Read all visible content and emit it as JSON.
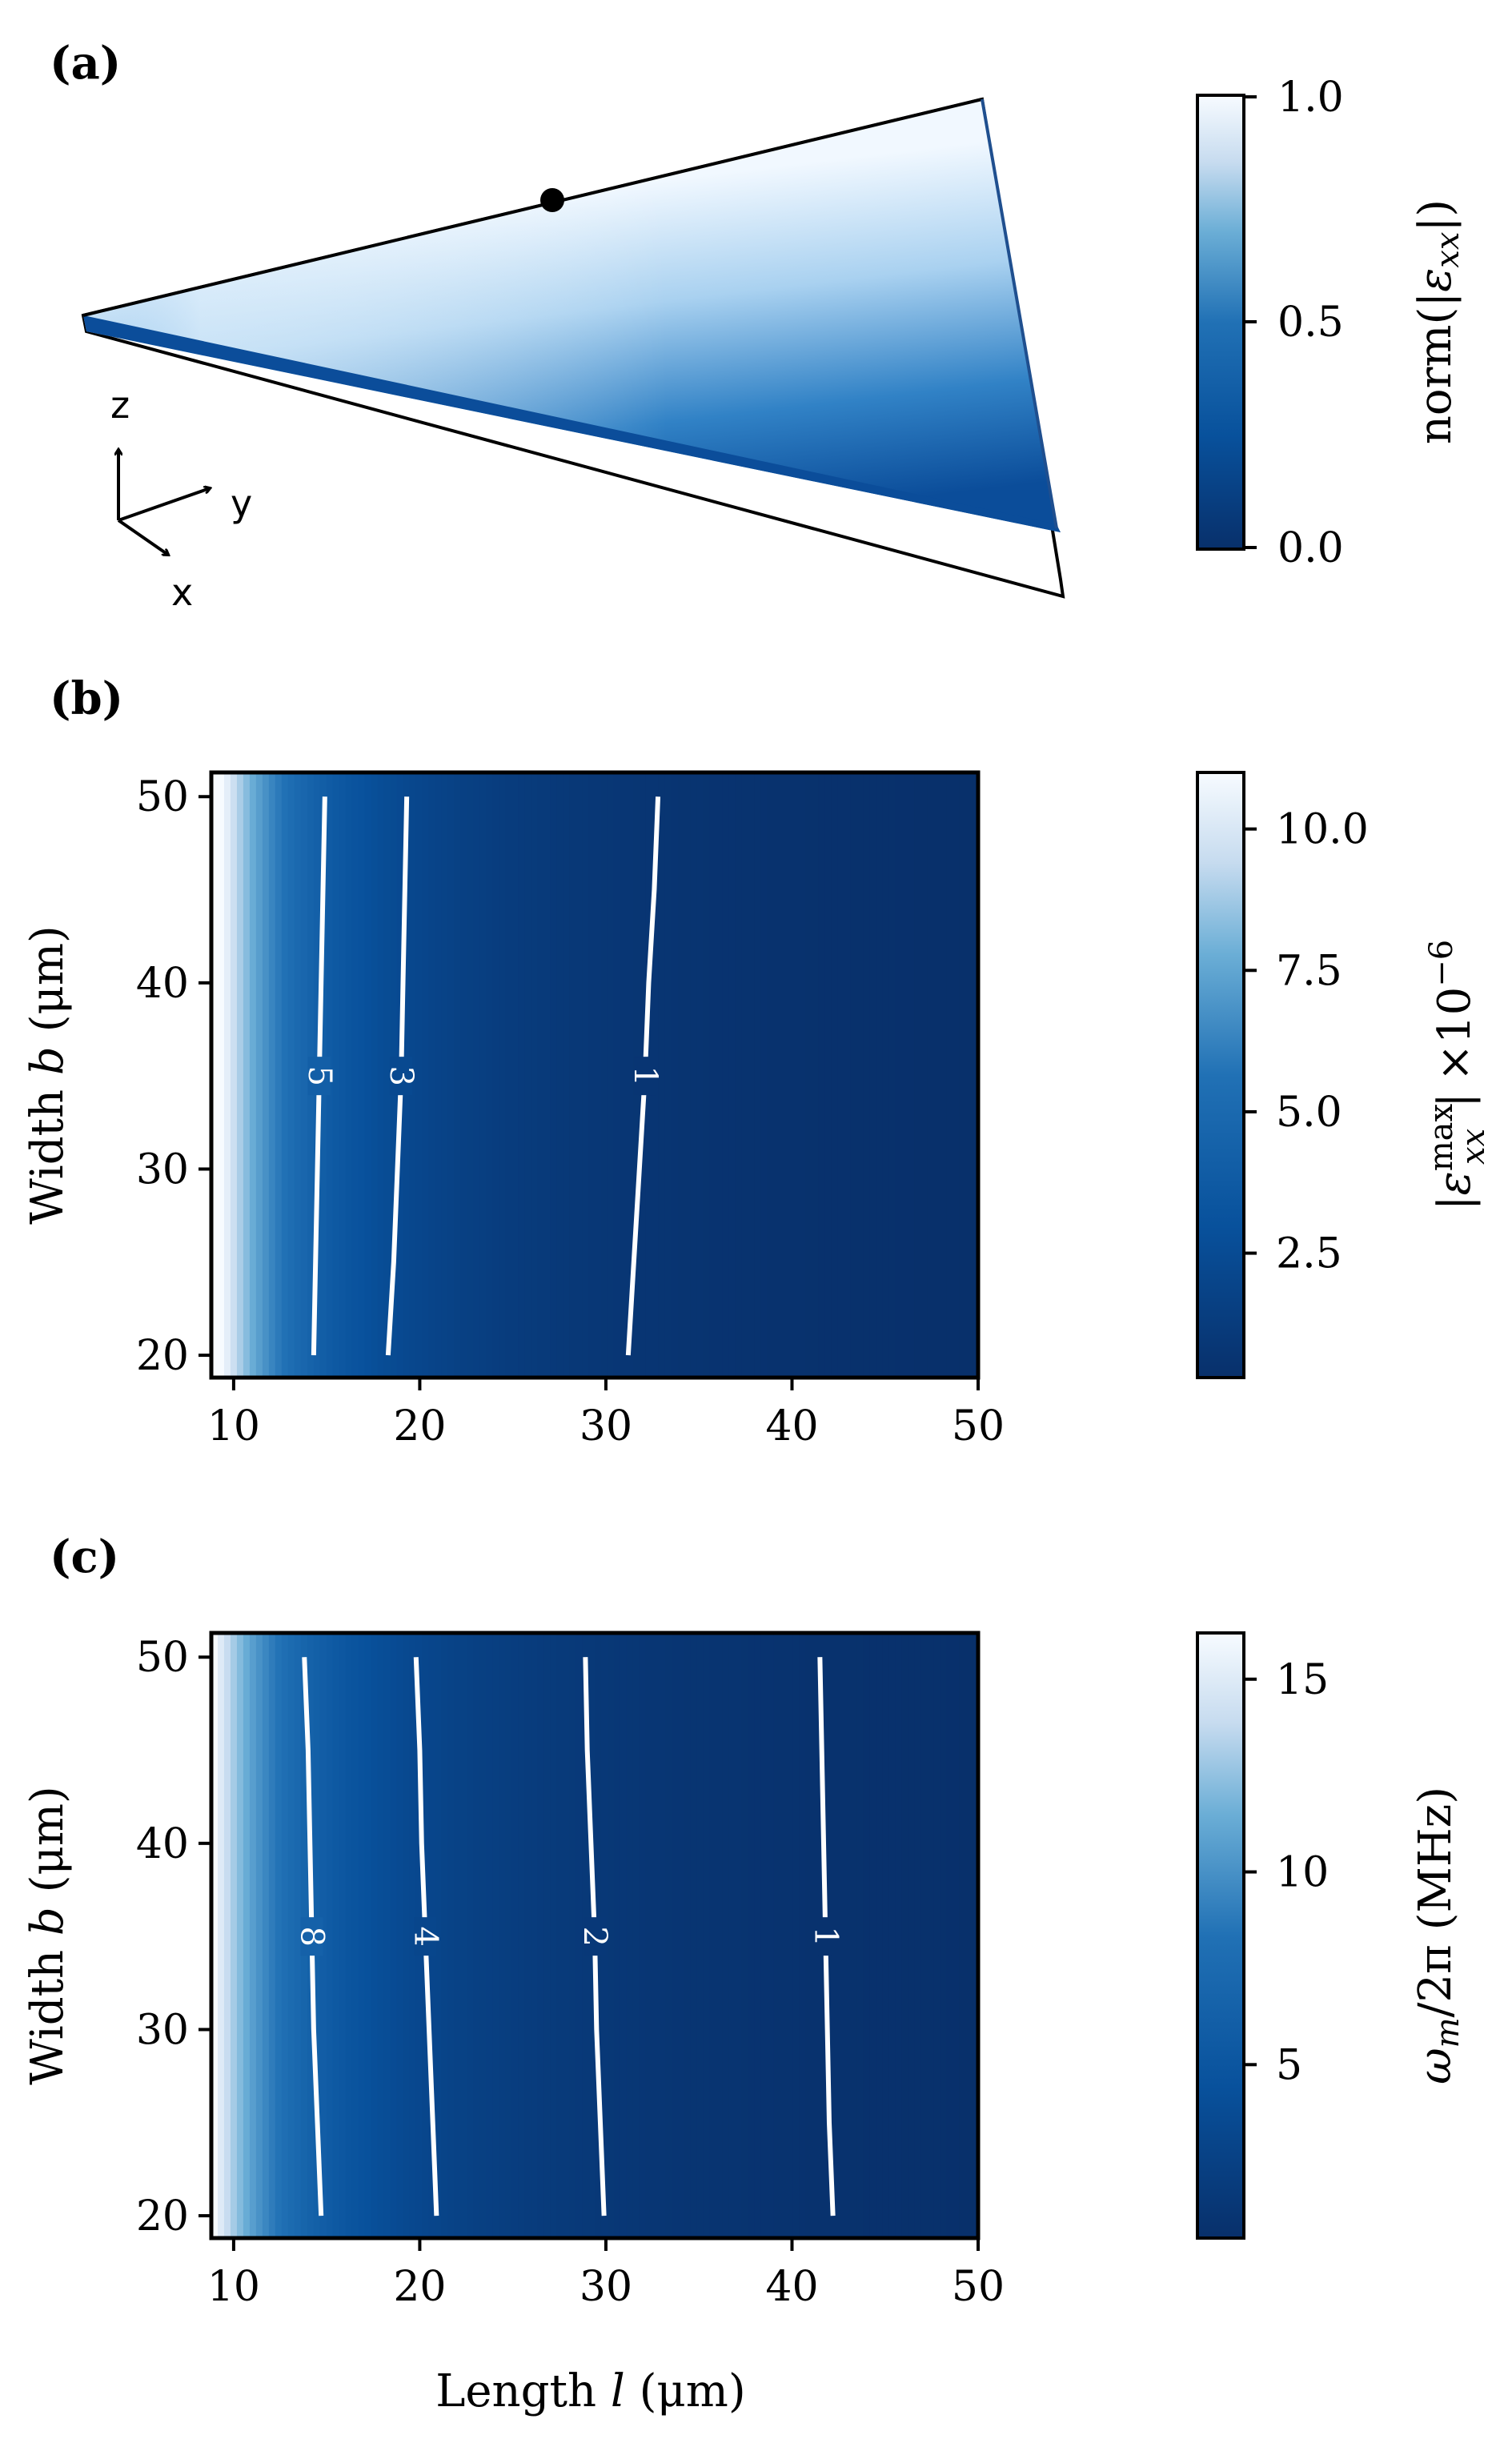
{
  "figure": {
    "panel_a": {
      "label": "(a)",
      "axes": {
        "z": "z",
        "y": "y",
        "x": "x"
      },
      "colorbar": {
        "label_prefix": "norm(|",
        "label_eps": "ε",
        "label_sub": "xx",
        "label_suffix": "|)",
        "ticks": [
          "0.0",
          "0.5",
          "1.0"
        ]
      }
    },
    "panel_b": {
      "label": "(b)",
      "colorbar": {
        "label_abs_open": "|",
        "label_eps": "ε",
        "label_sup": "max",
        "label_sub": "xx",
        "label_abs_close": "|",
        "label_scale": "×10",
        "label_exp": "−6",
        "ticks": [
          "2.5",
          "5.0",
          "7.5",
          "10.0"
        ]
      }
    },
    "panel_c": {
      "label": "(c)",
      "colorbar": {
        "label_omega": "ω",
        "label_sub": "m",
        "label_rest": "/2π (MHz)",
        "ticks": [
          "5",
          "10",
          "15"
        ]
      }
    },
    "shared": {
      "ylabel_prefix": "Width ",
      "ylabel_var": "b",
      "ylabel_unit": " (μm)",
      "xlabel_prefix": "Length ",
      "xlabel_var": "l",
      "xlabel_unit": " (μm)"
    }
  },
  "colors": {
    "dark_blue": "#08306b",
    "mid_blue": "#2171b5",
    "light_blue": "#9ecae1",
    "white": "#f7fbff",
    "contour": "#ffffff"
  },
  "chart_data": [
    {
      "type": "heatmap",
      "panel": "b",
      "xlabel": "Length l (μm)",
      "ylabel": "Width b (μm)",
      "xlim": [
        8.8,
        50
      ],
      "ylim": [
        18.8,
        51.3
      ],
      "xticks": [
        10,
        20,
        30,
        40,
        50
      ],
      "yticks": [
        20,
        30,
        40,
        50
      ],
      "colorbar_label": "|ε_xx^max| ×10^-6",
      "colorbar_range": [
        0.3,
        11.0
      ],
      "colorbar_ticks": [
        2.5,
        5.0,
        7.5,
        10.0
      ],
      "colormap": "Blues_r",
      "field": {
        "form": "power_law_in_length",
        "value_at_l10": 9.6,
        "exponent": -2.2
      },
      "contours": [
        {
          "level": 5,
          "label": "5",
          "points": [
            [
              14.9,
              50
            ],
            [
              14.8,
              45
            ],
            [
              14.7,
              40
            ],
            [
              14.6,
              35
            ],
            [
              14.5,
              30
            ],
            [
              14.4,
              25
            ],
            [
              14.3,
              20
            ]
          ]
        },
        {
          "level": 3,
          "label": "3",
          "points": [
            [
              19.3,
              50
            ],
            [
              19.2,
              45
            ],
            [
              19.1,
              40
            ],
            [
              19.0,
              35
            ],
            [
              18.8,
              30
            ],
            [
              18.6,
              25
            ],
            [
              18.3,
              20
            ]
          ]
        },
        {
          "level": 1,
          "label": "1",
          "points": [
            [
              32.8,
              50
            ],
            [
              32.6,
              45
            ],
            [
              32.3,
              40
            ],
            [
              32.1,
              35
            ],
            [
              31.8,
              30
            ],
            [
              31.5,
              25
            ],
            [
              31.2,
              20
            ]
          ]
        }
      ]
    },
    {
      "type": "heatmap",
      "panel": "c",
      "xlabel": "Length l (μm)",
      "ylabel": "Width b (μm)",
      "xlim": [
        8.8,
        50
      ],
      "ylim": [
        18.8,
        51.3
      ],
      "xticks": [
        10,
        20,
        30,
        40,
        50
      ],
      "yticks": [
        20,
        30,
        40,
        50
      ],
      "colorbar_label": "ω_m/2π (MHz)",
      "colorbar_range": [
        0.5,
        16.2
      ],
      "colorbar_ticks": [
        5,
        10,
        15
      ],
      "colormap": "Blues_r",
      "field": {
        "form": "power_law_in_length",
        "value_at_l10": 13.0,
        "exponent": -2.0
      },
      "contours": [
        {
          "level": 8,
          "label": "8",
          "points": [
            [
              13.8,
              50
            ],
            [
              14.0,
              45
            ],
            [
              14.1,
              40
            ],
            [
              14.2,
              35
            ],
            [
              14.3,
              30
            ],
            [
              14.5,
              25
            ],
            [
              14.7,
              20
            ]
          ]
        },
        {
          "level": 4,
          "label": "4",
          "points": [
            [
              19.8,
              50
            ],
            [
              20.0,
              45
            ],
            [
              20.1,
              40
            ],
            [
              20.3,
              35
            ],
            [
              20.5,
              30
            ],
            [
              20.7,
              25
            ],
            [
              20.9,
              20
            ]
          ]
        },
        {
          "level": 2,
          "label": "2",
          "points": [
            [
              28.9,
              50
            ],
            [
              29.0,
              45
            ],
            [
              29.2,
              40
            ],
            [
              29.4,
              35
            ],
            [
              29.5,
              30
            ],
            [
              29.7,
              25
            ],
            [
              29.9,
              20
            ]
          ]
        },
        {
          "level": 1,
          "label": "1",
          "points": [
            [
              41.5,
              50
            ],
            [
              41.6,
              45
            ],
            [
              41.7,
              40
            ],
            [
              41.8,
              35
            ],
            [
              41.9,
              30
            ],
            [
              42.0,
              25
            ],
            [
              42.2,
              20
            ]
          ]
        }
      ]
    }
  ]
}
